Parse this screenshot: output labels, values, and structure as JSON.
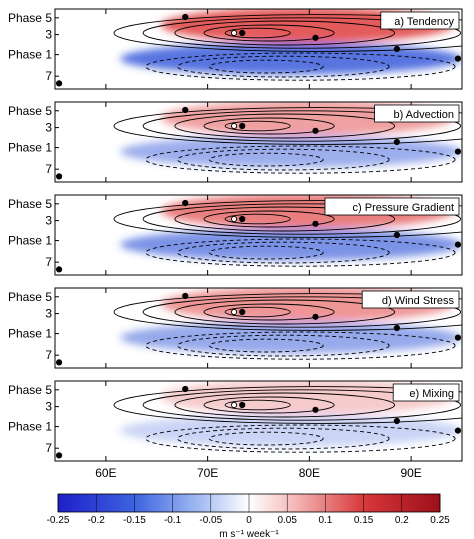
{
  "chart_data": {
    "type": "heatmap",
    "x_axis": {
      "range": [
        55,
        95
      ],
      "ticks": [
        60,
        70,
        80,
        90
      ],
      "tick_labels": [
        "60E",
        "70E",
        "80E",
        "90E"
      ]
    },
    "y_axis": {
      "ticks": [
        "Phase 5",
        "3",
        "Phase 1",
        "7"
      ]
    },
    "panels": [
      {
        "label": "a) Tendency",
        "colors": [
          "#d33",
          "#2f54d8"
        ],
        "strength": 0.95
      },
      {
        "label": "b) Advection",
        "colors": [
          "#d33",
          "#2f54d8"
        ],
        "strength": 0.55
      },
      {
        "label": "c) Pressure Gradient",
        "colors": [
          "#d33",
          "#2f54d8"
        ],
        "strength": 0.75
      },
      {
        "label": "d) Wind Stress",
        "colors": [
          "#d33",
          "#2f54d8"
        ],
        "strength": 0.6
      },
      {
        "label": "e) Mixing",
        "colors": [
          "#d33",
          "#2f54d8"
        ],
        "strength": 0.3
      }
    ],
    "colorbar": {
      "min": -0.25,
      "max": 0.25,
      "tick_labels": [
        "-0.25",
        "-0.2",
        "-0.15",
        "-0.1",
        "-0.05",
        "0",
        "0.05",
        "0.1",
        "0.15",
        "0.2",
        "0.25"
      ],
      "units": "m s⁻¹ week⁻¹",
      "colors": [
        "#1d1fc8",
        "#3d63e0",
        "#8fb0f0",
        "#ffffff",
        "#f0a8a8",
        "#d8383b",
        "#9c0f1a"
      ]
    }
  }
}
